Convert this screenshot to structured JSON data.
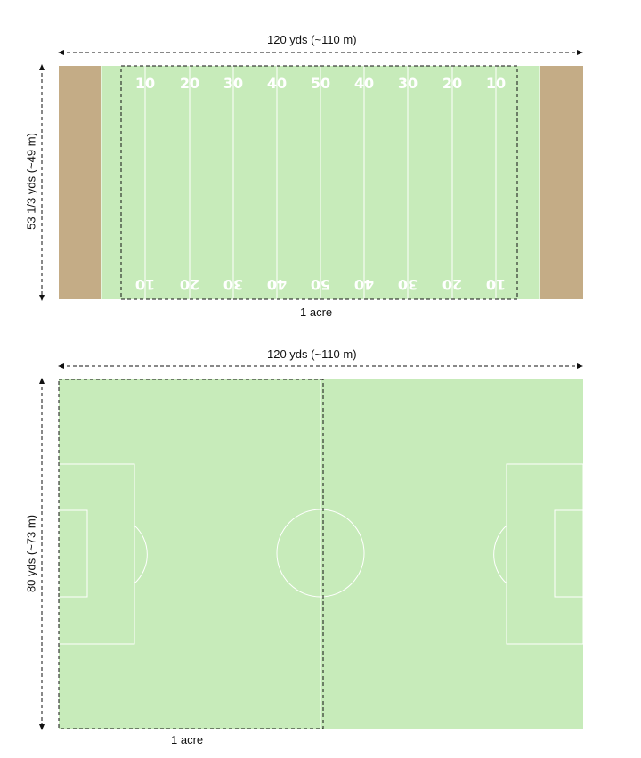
{
  "colors": {
    "grass": "#c7ebba",
    "endzone": "#c4ac86",
    "line": "#ffffff",
    "dash": "#111111"
  },
  "football": {
    "width_label": "120 yds (~110 m)",
    "height_label": "53 1/3 yds (~49 m)",
    "acre_label": "1 acre",
    "top_numbers": [
      "10",
      "20",
      "30",
      "40",
      "50",
      "40",
      "30",
      "20",
      "10"
    ],
    "bottom_numbers": [
      "10",
      "20",
      "30",
      "40",
      "50",
      "40",
      "30",
      "20",
      "10"
    ]
  },
  "soccer": {
    "width_label": "120 yds (~110 m)",
    "height_label": "80 yds (~73 m)",
    "acre_label": "1 acre"
  }
}
